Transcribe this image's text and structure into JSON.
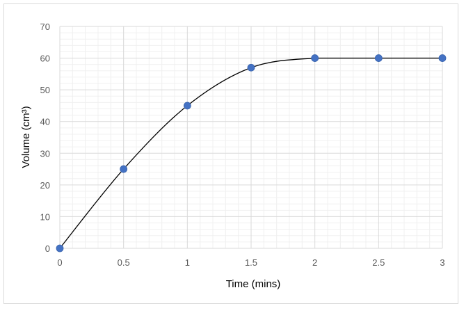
{
  "chart_data": {
    "type": "scatter",
    "xlabel": "Time (mins)",
    "ylabel": "Volume (cm³)",
    "xlim": [
      0,
      3
    ],
    "ylim": [
      0,
      70
    ],
    "x_ticks": [
      0,
      0.5,
      1,
      1.5,
      2,
      2.5,
      3
    ],
    "y_ticks": [
      0,
      10,
      20,
      30,
      40,
      50,
      60,
      70
    ],
    "x_tick_labels": [
      "0",
      "0.5",
      "1",
      "1.5",
      "2",
      "2.5",
      "3"
    ],
    "y_tick_labels": [
      "0",
      "10",
      "20",
      "30",
      "40",
      "50",
      "60",
      "70"
    ],
    "grid": true,
    "minor_grid": true,
    "smooth_line": true,
    "series": [
      {
        "points": [
          {
            "x": 0,
            "y": 0
          },
          {
            "x": 0.5,
            "y": 25
          },
          {
            "x": 1,
            "y": 45
          },
          {
            "x": 1.5,
            "y": 57
          },
          {
            "x": 2,
            "y": 60
          },
          {
            "x": 2.5,
            "y": 60
          },
          {
            "x": 3,
            "y": 60
          }
        ],
        "marker_color": "#4472c4",
        "line_color": "#000000"
      }
    ]
  }
}
